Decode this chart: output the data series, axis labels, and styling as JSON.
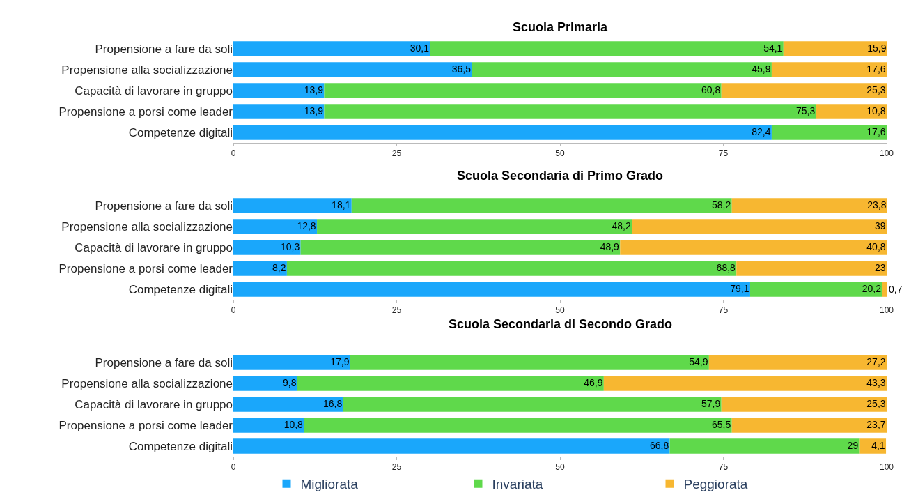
{
  "chart_data": [
    {
      "type": "bar",
      "orientation": "horizontal",
      "stacked": true,
      "title": "Scuola Primaria",
      "legend": "bottom",
      "data_labels": true,
      "xlim": [
        0,
        100
      ],
      "xticks": [
        0,
        25,
        50,
        75,
        100
      ],
      "categories": [
        "Propensione a fare da soli",
        "Propensione alla socializzazione",
        "Capacità di lavorare in gruppo",
        "Propensione a porsi come leader",
        "Competenze digitali"
      ],
      "series": [
        {
          "name": "Migliorata",
          "color": "#1aa7fb",
          "values": [
            30.1,
            36.5,
            13.9,
            13.9,
            82.4
          ],
          "value_labels": [
            "30,1",
            "36,5",
            "13,9",
            "13,9",
            "82,4"
          ]
        },
        {
          "name": "Invariata",
          "color": "#5fd94b",
          "values": [
            54.1,
            45.9,
            60.8,
            75.3,
            17.6
          ],
          "value_labels": [
            "54,1",
            "45,9",
            "60,8",
            "75,3",
            "17,6"
          ]
        },
        {
          "name": "Peggiorata",
          "color": "#f7b731",
          "values": [
            15.9,
            17.6,
            25.3,
            10.8,
            null
          ],
          "value_labels": [
            "15,9",
            "17,6",
            "25,3",
            "10,8",
            null
          ]
        }
      ]
    },
    {
      "type": "bar",
      "orientation": "horizontal",
      "stacked": true,
      "title": "Scuola Secondaria di Primo Grado",
      "data_labels": true,
      "xlim": [
        0,
        100
      ],
      "xticks": [
        0,
        25,
        50,
        75,
        100
      ],
      "categories": [
        "Propensione a fare da soli",
        "Propensione alla socializzazione",
        "Capacità di lavorare in gruppo",
        "Propensione a porsi come leader",
        "Competenze digitali"
      ],
      "series": [
        {
          "color": "#1aa7fb",
          "values": [
            18.1,
            12.8,
            10.3,
            8.2,
            79.1
          ],
          "value_labels": [
            "18,1",
            "12,8",
            "10,3",
            "8,2",
            "79,1"
          ]
        },
        {
          "color": "#5fd94b",
          "values": [
            58.2,
            48.2,
            48.9,
            68.8,
            20.2
          ],
          "value_labels": [
            "58,2",
            "48,2",
            "48,9",
            "68,8",
            "20,2"
          ]
        },
        {
          "color": "#f7b731",
          "values": [
            23.8,
            39,
            40.8,
            23,
            0.7
          ],
          "value_labels": [
            "23,8",
            "39",
            "40,8",
            "23",
            "0,7"
          ]
        }
      ]
    },
    {
      "type": "bar",
      "orientation": "horizontal",
      "stacked": true,
      "title": "Scuola Secondaria di Secondo Grado",
      "data_labels": true,
      "xlim": [
        0,
        100
      ],
      "xticks": [
        0,
        25,
        50,
        75,
        100
      ],
      "categories": [
        "Propensione a fare da soli",
        "Propensione alla socializzazione",
        "Capacità di lavorare in gruppo",
        "Propensione a porsi come leader",
        "Competenze digitali"
      ],
      "series": [
        {
          "color": "#1aa7fb",
          "values": [
            17.9,
            9.8,
            16.8,
            10.8,
            66.8
          ],
          "value_labels": [
            "17,9",
            "9,8",
            "16,8",
            "10,8",
            "66,8"
          ]
        },
        {
          "color": "#5fd94b",
          "values": [
            54.9,
            46.9,
            57.9,
            65.5,
            29
          ],
          "value_labels": [
            "54,9",
            "46,9",
            "57,9",
            "65,5",
            "29"
          ]
        },
        {
          "color": "#f7b731",
          "values": [
            27.2,
            43.3,
            25.3,
            23.7,
            4.1
          ],
          "value_labels": [
            "27,2",
            "43,3",
            "25,3",
            "23,7",
            "4,1"
          ]
        }
      ]
    }
  ]
}
